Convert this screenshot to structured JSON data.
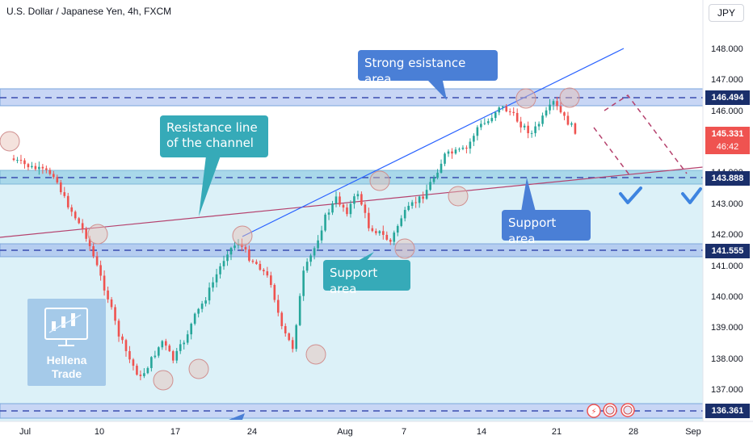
{
  "header": {
    "title": "U.S. Dollar / Japanese Yen, 4h, FXCM",
    "currency": "JPY"
  },
  "colors": {
    "up": "#26a69a",
    "down": "#ef5350",
    "annotation": "#4a7fd6",
    "annotation_teal": "#36aab8",
    "resistance_line": "#b5416d",
    "channel_line": "#2962ff",
    "zone_fill": "#c8d6f5",
    "support_fill": "#bfe5f2",
    "check": "#3d84e0"
  },
  "annotations": {
    "strong_resistance": "Strong esistance area",
    "resistance_line": "Resistance line\nof the channel",
    "support_right": "Support area",
    "support_mid": "Support area"
  },
  "logo": {
    "line1": "Hellena",
    "line2": "Trade"
  },
  "chart_data": {
    "type": "candlestick",
    "title": "U.S. Dollar / Japanese Yen, 4h, FXCM",
    "x_ticks": [
      "Jul",
      "10",
      "17",
      "24",
      "Aug",
      "7",
      "14",
      "21",
      "28",
      "Sep"
    ],
    "y_ticks": [
      "148.000",
      "147.000",
      "146.000",
      "145.000",
      "144.000",
      "143.000",
      "142.000",
      "141.000",
      "140.000",
      "139.000",
      "138.000",
      "137.000"
    ],
    "ylim": [
      136.0,
      148.6
    ],
    "price_labels": [
      {
        "value": 146.494,
        "label": "146.494",
        "color": "#1a2f6b"
      },
      {
        "value": 145.331,
        "label": "145.331",
        "color": "#ef5350",
        "sub": "46:42"
      },
      {
        "value": 143.888,
        "label": "143.888",
        "color": "#1a2f6b"
      },
      {
        "value": 141.555,
        "label": "141.555",
        "color": "#1a2f6b"
      },
      {
        "value": 136.361,
        "label": "136.361",
        "color": "#1a2f6b"
      }
    ],
    "zones": [
      {
        "name": "strong-resistance",
        "from": 146.1,
        "to": 146.7
      },
      {
        "name": "support",
        "from": 143.6,
        "to": 144.0
      },
      {
        "name": "support-low",
        "from": 141.4,
        "to": 141.8
      },
      {
        "name": "bottom",
        "from": 136.2,
        "to": 136.5
      }
    ],
    "close_path": [
      {
        "x": "Jul 3",
        "y": 144.5
      },
      {
        "x": "Jul 5",
        "y": 144.2
      },
      {
        "x": "Jul 7",
        "y": 144.0
      },
      {
        "x": "Jul 8",
        "y": 143.2
      },
      {
        "x": "Jul 10",
        "y": 142.0
      },
      {
        "x": "Jul 11",
        "y": 141.0
      },
      {
        "x": "Jul 12",
        "y": 140.0
      },
      {
        "x": "Jul 13",
        "y": 138.8
      },
      {
        "x": "Jul 14",
        "y": 138.0
      },
      {
        "x": "Jul 15",
        "y": 137.4
      },
      {
        "x": "Jul 17",
        "y": 138.6
      },
      {
        "x": "Jul 18",
        "y": 138.0
      },
      {
        "x": "Jul 19",
        "y": 138.6
      },
      {
        "x": "Jul 20",
        "y": 139.4
      },
      {
        "x": "Jul 21",
        "y": 140.0
      },
      {
        "x": "Jul 23",
        "y": 141.5
      },
      {
        "x": "Jul 24",
        "y": 141.8
      },
      {
        "x": "Jul 25",
        "y": 141.3
      },
      {
        "x": "Jul 26",
        "y": 141.0
      },
      {
        "x": "Jul 27",
        "y": 140.5
      },
      {
        "x": "Jul 28",
        "y": 139.0
      },
      {
        "x": "Jul 29",
        "y": 138.4
      },
      {
        "x": "Jul 30",
        "y": 140.8
      },
      {
        "x": "Jul 31",
        "y": 141.6
      },
      {
        "x": "Aug 1",
        "y": 142.6
      },
      {
        "x": "Aug 2",
        "y": 143.2
      },
      {
        "x": "Aug 3",
        "y": 142.8
      },
      {
        "x": "Aug 4",
        "y": 143.4
      },
      {
        "x": "Aug 5",
        "y": 142.3
      },
      {
        "x": "Aug 6",
        "y": 142.1
      },
      {
        "x": "Aug 7",
        "y": 141.8
      },
      {
        "x": "Aug 8",
        "y": 142.6
      },
      {
        "x": "Aug 9",
        "y": 143.0
      },
      {
        "x": "Aug 10",
        "y": 143.3
      },
      {
        "x": "Aug 11",
        "y": 143.9
      },
      {
        "x": "Aug 12",
        "y": 144.6
      },
      {
        "x": "Aug 14",
        "y": 144.8
      },
      {
        "x": "Aug 15",
        "y": 145.5
      },
      {
        "x": "Aug 16",
        "y": 145.7
      },
      {
        "x": "Aug 17",
        "y": 146.2
      },
      {
        "x": "Aug 18",
        "y": 146.0
      },
      {
        "x": "Aug 19",
        "y": 145.6
      },
      {
        "x": "Aug 20",
        "y": 145.3
      },
      {
        "x": "Aug 21",
        "y": 145.8
      },
      {
        "x": "Aug 22",
        "y": 146.3
      },
      {
        "x": "Aug 23",
        "y": 145.8
      },
      {
        "x": "Aug 24",
        "y": 145.4
      }
    ],
    "forecast": [
      {
        "x": "Aug 24",
        "y": 145.4
      },
      {
        "x": "Aug 25",
        "y": 144.6
      },
      {
        "x": "Aug 27",
        "y": 143.9
      },
      {
        "x": "Aug 26",
        "y": 146.4
      },
      {
        "x": "Aug 28",
        "y": 146.5
      },
      {
        "x": "Aug 31",
        "y": 143.9
      }
    ]
  }
}
